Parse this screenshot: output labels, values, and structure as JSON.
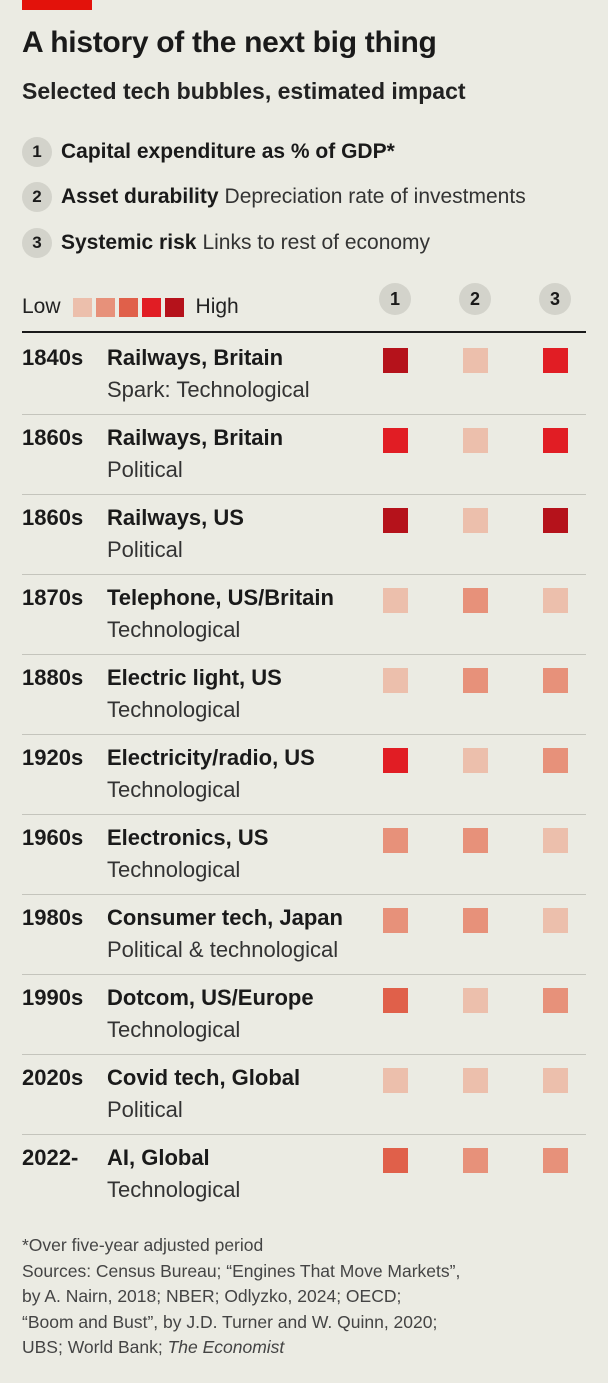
{
  "header": {
    "title": "A history of the next big thing",
    "subtitle": "Selected tech bubbles, estimated impact"
  },
  "metrics": [
    {
      "num": "1",
      "name": "Capital expenditure as % of GDP*",
      "desc": ""
    },
    {
      "num": "2",
      "name": "Asset durability",
      "desc": "Depreciation rate of investments"
    },
    {
      "num": "3",
      "name": "Systemic risk",
      "desc": "Links to rest of economy"
    }
  ],
  "scale": {
    "low_label": "Low",
    "high_label": "High",
    "colors": [
      "#ecbfac",
      "#e7917a",
      "#e0604a",
      "#e11d24",
      "#b5121b"
    ]
  },
  "columns": [
    "1",
    "2",
    "3"
  ],
  "chart_data": {
    "type": "heatmap",
    "title": "A history of the next big thing",
    "subtitle": "Selected tech bubbles, estimated impact",
    "scale": "1 (Low) to 5 (High)",
    "rows": [
      {
        "period": "1840s",
        "bubble": "Railways, Britain",
        "spark_prefix": "Spark: ",
        "spark": "Technological",
        "values": [
          5,
          1,
          4
        ]
      },
      {
        "period": "1860s",
        "bubble": "Railways, Britain",
        "spark_prefix": "",
        "spark": "Political",
        "values": [
          4,
          1,
          4
        ]
      },
      {
        "period": "1860s",
        "bubble": "Railways, US",
        "spark_prefix": "",
        "spark": "Political",
        "values": [
          5,
          1,
          5
        ]
      },
      {
        "period": "1870s",
        "bubble": "Telephone, US/Britain",
        "spark_prefix": "",
        "spark": "Technological",
        "values": [
          1,
          2,
          1
        ]
      },
      {
        "period": "1880s",
        "bubble": "Electric light, US",
        "spark_prefix": "",
        "spark": "Technological",
        "values": [
          1,
          2,
          2
        ]
      },
      {
        "period": "1920s",
        "bubble": "Electricity/radio, US",
        "spark_prefix": "",
        "spark": "Technological",
        "values": [
          4,
          1,
          2
        ]
      },
      {
        "period": "1960s",
        "bubble": "Electronics, US",
        "spark_prefix": "",
        "spark": "Technological",
        "values": [
          2,
          2,
          1
        ]
      },
      {
        "period": "1980s",
        "bubble": "Consumer tech, Japan",
        "spark_prefix": "",
        "spark": "Political & technological",
        "values": [
          2,
          2,
          1
        ]
      },
      {
        "period": "1990s",
        "bubble": "Dotcom, US/Europe",
        "spark_prefix": "",
        "spark": "Technological",
        "values": [
          3,
          1,
          2
        ]
      },
      {
        "period": "2020s",
        "bubble": "Covid tech, Global",
        "spark_prefix": "",
        "spark": "Political",
        "values": [
          1,
          1,
          1
        ]
      },
      {
        "period": "2022-",
        "bubble": "AI, Global",
        "spark_prefix": "",
        "spark": "Technological",
        "values": [
          3,
          2,
          2
        ]
      }
    ]
  },
  "footer": {
    "note": "*Over five-year adjusted period",
    "sources": [
      "Sources: Census Bureau; “Engines That Move Markets”,",
      "by A. Nairn, 2018; NBER; Odlyzko, 2024; OECD;",
      "“Boom and Bust”, by J.D. Turner and W. Quinn, 2020;",
      "UBS; World Bank; "
    ],
    "publisher": "The Economist"
  }
}
